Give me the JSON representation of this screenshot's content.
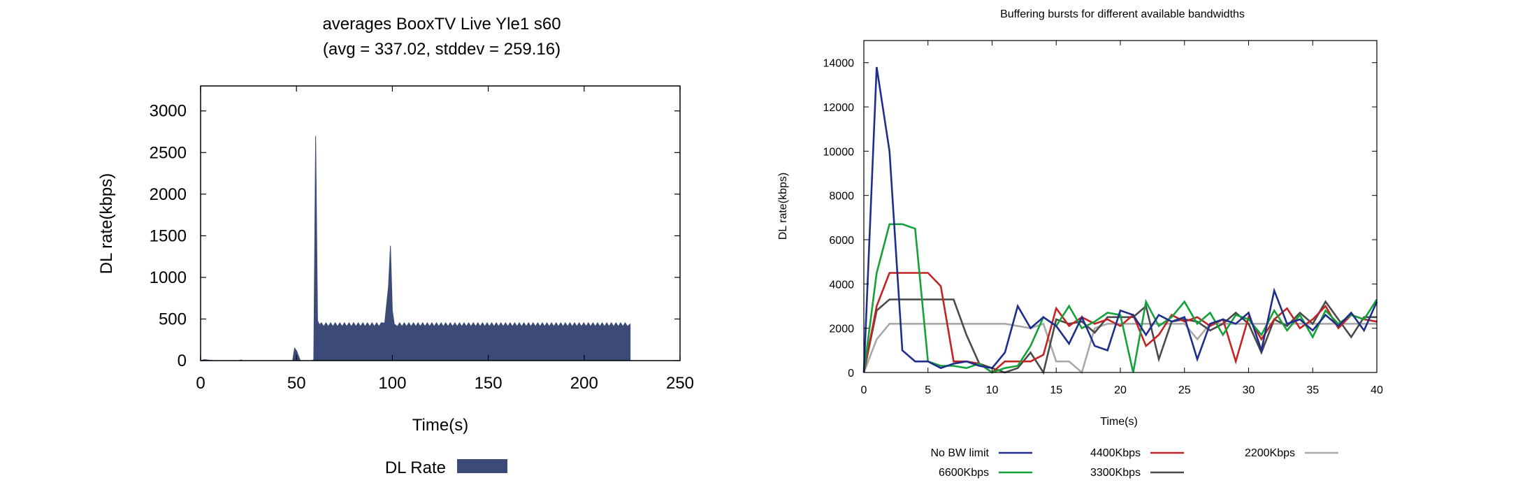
{
  "chart_data": [
    {
      "type": "area",
      "title": "averages BooxTV Live Yle1 s60",
      "subtitle": "(avg = 337.02, stddev = 259.16)",
      "xlabel": "Time(s)",
      "ylabel": "DL rate(kbps)",
      "xlim": [
        0,
        250
      ],
      "ylim": [
        0,
        3300
      ],
      "xticks": [
        "0",
        "50",
        "100",
        "150",
        "200",
        "250"
      ],
      "yticks": [
        "0",
        "500",
        "1000",
        "1500",
        "2000",
        "2500",
        "3000"
      ],
      "legend": "bottom",
      "grid": false,
      "series": [
        {
          "name": "DL Rate",
          "color": "#3c4a78",
          "points": [
            [
              0,
              0
            ],
            [
              2,
              12
            ],
            [
              4,
              6
            ],
            [
              7,
              0
            ],
            [
              20,
              0
            ],
            [
              21,
              8
            ],
            [
              22,
              0
            ],
            [
              48,
              0
            ],
            [
              49,
              150
            ],
            [
              50,
              120
            ],
            [
              51,
              60
            ],
            [
              52,
              0
            ],
            [
              58,
              0
            ],
            [
              59,
              10
            ],
            [
              60,
              2700
            ],
            [
              61,
              480
            ],
            [
              62,
              430
            ],
            [
              96,
              450
            ],
            [
              98,
              900
            ],
            [
              99,
              1380
            ],
            [
              100,
              600
            ],
            [
              101,
              440
            ],
            [
              224,
              440
            ],
            [
              224,
              0
            ]
          ],
          "ripple": {
            "x_start": 61,
            "x_end": 224,
            "low": 410,
            "high": 455,
            "step": 1.2
          }
        }
      ]
    },
    {
      "type": "line",
      "title": "Buffering bursts for different available bandwidths",
      "xlabel": "Time(s)",
      "ylabel": "DL rate(kbps)",
      "xlim": [
        0,
        40
      ],
      "ylim": [
        0,
        15000
      ],
      "xticks": [
        "0",
        "5",
        "10",
        "15",
        "20",
        "25",
        "30",
        "35",
        "40"
      ],
      "yticks": [
        "0",
        "2000",
        "4000",
        "6000",
        "8000",
        "10000",
        "12000",
        "14000"
      ],
      "legend": "bottom",
      "grid": false,
      "series": [
        {
          "name": "No BW limit",
          "color": "#1f2d8c",
          "x": [
            0,
            1,
            2,
            3,
            4,
            5,
            6,
            7,
            8,
            9,
            10,
            11,
            12,
            13,
            14,
            15,
            16,
            17,
            18,
            19,
            20,
            21,
            22,
            23,
            24,
            25,
            26,
            27,
            28,
            29,
            30,
            31,
            32,
            33,
            34,
            35,
            36,
            37,
            38,
            39,
            40
          ],
          "y": [
            0,
            13800,
            10000,
            1000,
            500,
            500,
            200,
            400,
            500,
            300,
            200,
            900,
            3000,
            2000,
            2500,
            2100,
            1300,
            2500,
            1200,
            1000,
            2800,
            2600,
            1700,
            2600,
            2300,
            2500,
            600,
            2200,
            2400,
            2200,
            2700,
            1000,
            3700,
            2200,
            2400,
            1900,
            2600,
            2100,
            2700,
            1900,
            3200
          ]
        },
        {
          "name": "6600Kbps",
          "color": "#13a13a",
          "x": [
            0,
            1,
            2,
            3,
            4,
            5,
            6,
            7,
            8,
            9,
            10,
            11,
            12,
            13,
            14,
            15,
            16,
            17,
            18,
            19,
            20,
            21,
            22,
            23,
            24,
            25,
            26,
            27,
            28,
            29,
            30,
            31,
            32,
            33,
            34,
            35,
            36,
            37,
            38,
            39,
            40
          ],
          "y": [
            0,
            4500,
            6700,
            6700,
            6500,
            500,
            300,
            300,
            200,
            400,
            0,
            200,
            300,
            1200,
            2500,
            2100,
            3000,
            2000,
            2300,
            2700,
            2600,
            0,
            3200,
            2100,
            2500,
            3200,
            2200,
            2700,
            1700,
            2600,
            2400,
            1700,
            2800,
            1900,
            2600,
            1600,
            2800,
            2200,
            2600,
            2400,
            3300
          ]
        },
        {
          "name": "4400Kbps",
          "color": "#c42323",
          "x": [
            0,
            1,
            2,
            3,
            4,
            5,
            6,
            7,
            8,
            9,
            10,
            11,
            12,
            13,
            14,
            15,
            16,
            17,
            18,
            19,
            20,
            21,
            22,
            23,
            24,
            25,
            26,
            27,
            28,
            29,
            30,
            31,
            32,
            33,
            34,
            35,
            36,
            37,
            38,
            39,
            40
          ],
          "y": [
            0,
            3000,
            4500,
            4500,
            4500,
            4500,
            3900,
            500,
            500,
            400,
            0,
            500,
            500,
            500,
            800,
            2900,
            2100,
            2500,
            2200,
            2400,
            2100,
            2600,
            1200,
            1700,
            2600,
            2300,
            2500,
            2100,
            2400,
            500,
            2500,
            1500,
            2400,
            2900,
            2000,
            2400,
            3000,
            2000,
            2600,
            2400,
            2300
          ]
        },
        {
          "name": "3300Kbps",
          "color": "#4a4a4a",
          "x": [
            0,
            1,
            2,
            3,
            4,
            5,
            6,
            7,
            8,
            9,
            10,
            11,
            12,
            13,
            14,
            15,
            16,
            17,
            18,
            19,
            20,
            21,
            22,
            23,
            24,
            25,
            26,
            27,
            28,
            29,
            30,
            31,
            32,
            33,
            34,
            35,
            36,
            37,
            38,
            39,
            40
          ],
          "y": [
            0,
            2800,
            3300,
            3300,
            3300,
            3300,
            3300,
            3300,
            1700,
            400,
            200,
            0,
            200,
            900,
            0,
            2400,
            2200,
            2300,
            1800,
            2500,
            2500,
            2500,
            3000,
            600,
            2300,
            2400,
            2300,
            1900,
            2200,
            2700,
            2200,
            900,
            2400,
            2100,
            2700,
            2200,
            3200,
            2400,
            1600,
            2500,
            2500
          ]
        },
        {
          "name": "2200Kbps",
          "color": "#a8a8a8",
          "x": [
            0,
            1,
            2,
            3,
            4,
            5,
            6,
            7,
            8,
            9,
            10,
            11,
            12,
            13,
            14,
            15,
            16,
            17,
            18,
            19,
            20,
            21,
            22,
            23,
            24,
            25,
            26,
            27,
            28,
            29,
            30,
            31,
            32,
            33,
            34,
            35,
            36,
            37,
            38,
            39,
            40
          ],
          "y": [
            0,
            1500,
            2200,
            2200,
            2200,
            2200,
            2200,
            2200,
            2200,
            2200,
            2200,
            2200,
            2100,
            2000,
            2200,
            500,
            500,
            0,
            2000,
            2200,
            2200,
            2200,
            2200,
            2200,
            2200,
            2200,
            1500,
            2200,
            2200,
            2200,
            2200,
            2200,
            2200,
            2200,
            2200,
            2200,
            2200,
            2200,
            2200,
            2200,
            2200
          ]
        }
      ]
    }
  ]
}
